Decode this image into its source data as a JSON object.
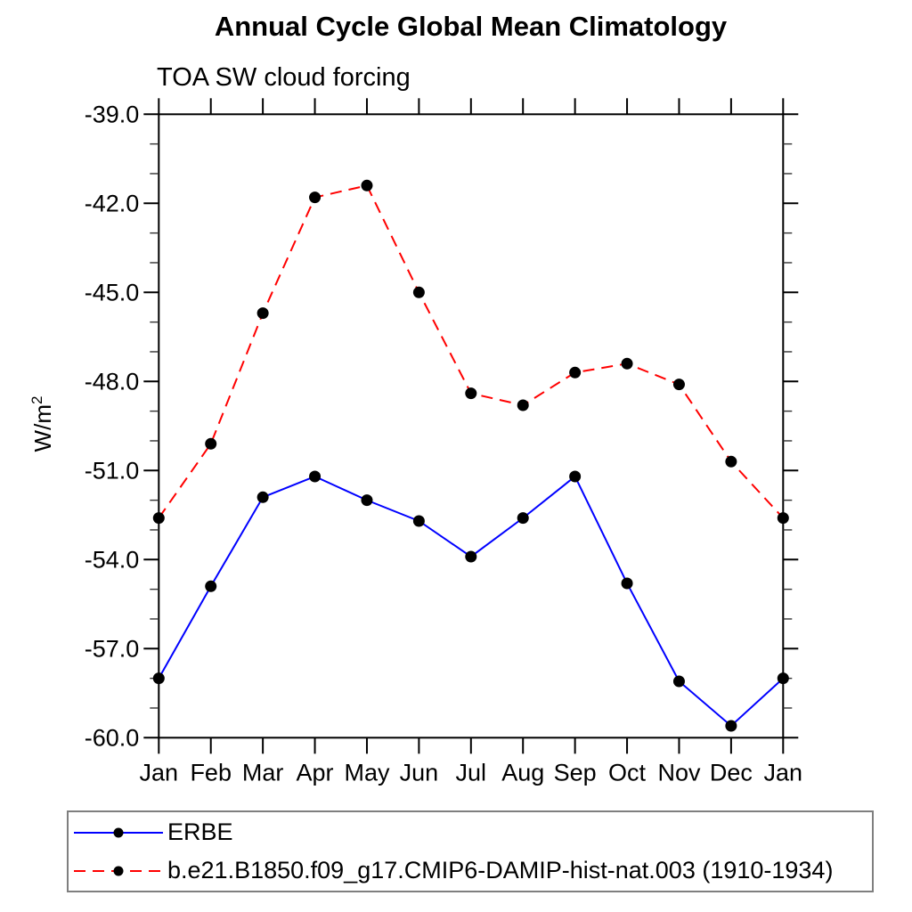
{
  "chart_data": {
    "type": "line",
    "title": "Annual Cycle Global Mean Climatology",
    "subtitle": "TOA SW cloud forcing",
    "ylabel": "W/m",
    "ylabel_superscript": "2",
    "grid": false,
    "legend_position": "bottom-left-box",
    "categories": [
      "Jan",
      "Feb",
      "Mar",
      "Apr",
      "May",
      "Jun",
      "Jul",
      "Aug",
      "Sep",
      "Oct",
      "Nov",
      "Dec",
      "Jan"
    ],
    "y_axis": {
      "min": -60.0,
      "max": -39.0,
      "major_step": 3.0,
      "minor_step": 1.0,
      "major_tick_labels": [
        "-39.0",
        "-42.0",
        "-45.0",
        "-48.0",
        "-51.0",
        "-54.0",
        "-57.0",
        "-60.0"
      ]
    },
    "series": [
      {
        "name": "ERBE",
        "color": "#0000ff",
        "line_style": "solid",
        "marker": "filled-circle",
        "marker_color": "#000000",
        "values": [
          -58.0,
          -54.9,
          -51.9,
          -51.2,
          -52.0,
          -52.7,
          -53.9,
          -52.6,
          -51.2,
          -54.8,
          -58.1,
          -59.6,
          -58.0
        ]
      },
      {
        "name": "b.e21.B1850.f09_g17.CMIP6-DAMIP-hist-nat.003 (1910-1934)",
        "color": "#ff0000",
        "line_style": "dashed",
        "marker": "filled-circle",
        "marker_color": "#000000",
        "values": [
          -52.6,
          -50.1,
          -45.7,
          -41.8,
          -41.4,
          -45.0,
          -48.4,
          -48.8,
          -47.7,
          -47.4,
          -48.1,
          -50.7,
          -52.6
        ]
      }
    ]
  }
}
